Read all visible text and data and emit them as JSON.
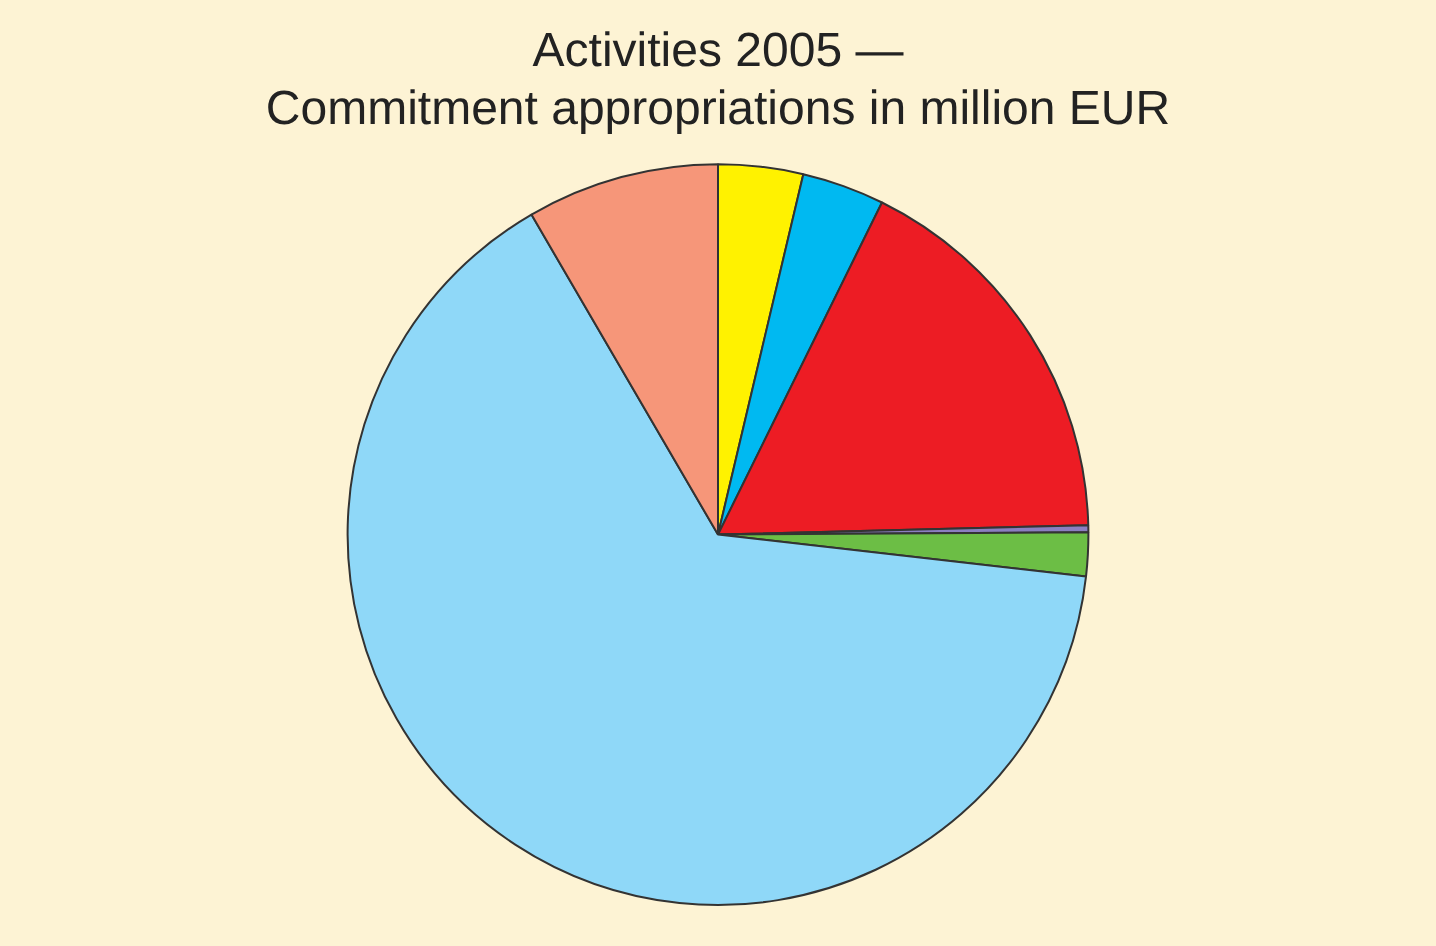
{
  "chart_data": {
    "type": "pie",
    "title": "Activities 2005 —\nCommitment appropriations in million EUR",
    "categories": [
      null,
      null,
      null,
      null,
      null,
      null,
      null
    ],
    "values": [
      3.7,
      3.6,
      17.3,
      0.3,
      1.9,
      64.8,
      8.4
    ],
    "colors": [
      "#fff200",
      "#00b9f1",
      "#ed1c24",
      "#8b7fc1",
      "#6cbe45",
      "#8fd8f8",
      "#f69679"
    ],
    "legend": false
  }
}
